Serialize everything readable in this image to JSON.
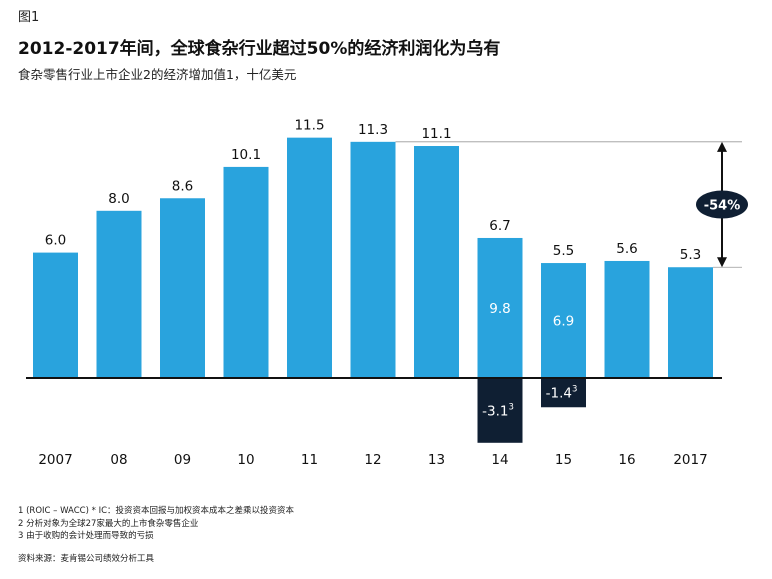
{
  "figure_label": "图1",
  "title": "2012-2017年间，全球食杂行业超过50%的经济利润化为乌有",
  "subtitle": "食杂零售行业上市企业2的经济增加值1，十亿美元",
  "chart_data": {
    "type": "bar",
    "categories": [
      "2007",
      "08",
      "09",
      "10",
      "11",
      "12",
      "13",
      "14",
      "15",
      "16",
      "2017"
    ],
    "series": [
      {
        "values": [
          6.0,
          8.0,
          8.6,
          10.1,
          11.5,
          11.3,
          11.1,
          6.7,
          5.5,
          5.6,
          5.3
        ]
      }
    ],
    "value_labels": [
      "6.0",
      "8.0",
      "8.6",
      "10.1",
      "11.5",
      "11.3",
      "11.1",
      "6.7",
      "5.5",
      "5.6",
      "5.3"
    ],
    "inner_segments": [
      {
        "category": "14",
        "value": 9.8,
        "label": "9.8"
      },
      {
        "category": "15",
        "value": 6.9,
        "label": "6.9"
      }
    ],
    "negative_segments": [
      {
        "category": "14",
        "value": -3.1,
        "label": "-3.1",
        "superscript": "3"
      },
      {
        "category": "15",
        "value": -1.4,
        "label": "-1.4",
        "superscript": "3"
      }
    ],
    "change_annotation": {
      "from_category": "12",
      "to_category": "2017",
      "label": "-54%"
    },
    "colors": {
      "bar": "#29a3dd",
      "negative": "#0f1f33",
      "badge": "#0f1f33",
      "axis": "#111111"
    }
  },
  "footnotes": [
    "1 (ROIC – WACC) * IC：投资资本回报与加权资本成本之差乘以投资资本",
    "2 分析对象为全球27家最大的上市食杂零售企业",
    "3 由于收购的会计处理而导致的亏损"
  ],
  "source": "资料来源：麦肯锡公司绩效分析工具"
}
